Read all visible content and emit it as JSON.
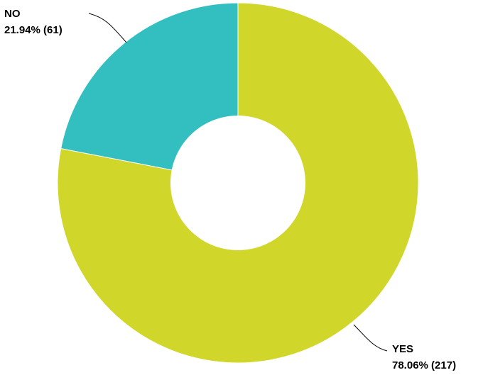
{
  "chart_data": {
    "type": "pie",
    "variant": "donut",
    "title": "",
    "slices": [
      {
        "category": "YES",
        "label_value": "78.06% (217)",
        "percent": 78.06,
        "count": 217,
        "color": "#d0d62a"
      },
      {
        "category": "NO",
        "label_value": "21.94% (61)",
        "percent": 21.94,
        "count": 61,
        "color": "#33bfbf"
      }
    ],
    "legend": "none"
  }
}
